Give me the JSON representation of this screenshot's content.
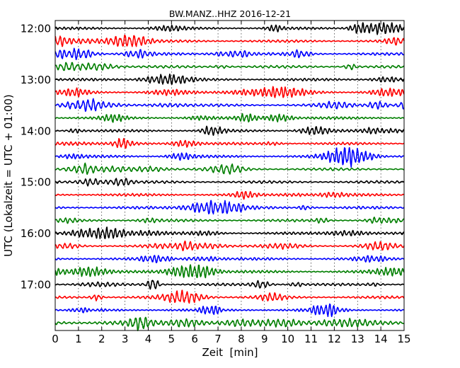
{
  "chart_data": {
    "type": "line",
    "title": "BW.MANZ..HHZ 2016-12-21",
    "xlabel": "Zeit  [min]",
    "ylabel": "UTC (Lokalzeit = UTC + 01:00)",
    "xlim": [
      0,
      15
    ],
    "x_ticks": [
      "0",
      "1",
      "2",
      "3",
      "4",
      "5",
      "6",
      "7",
      "8",
      "9",
      "10",
      "11",
      "12",
      "13",
      "14",
      "15"
    ],
    "y_ticks": [
      {
        "label": "12:00",
        "row": 0
      },
      {
        "label": "13:00",
        "row": 4
      },
      {
        "label": "14:00",
        "row": 8
      },
      {
        "label": "15:00",
        "row": 12
      },
      {
        "label": "16:00",
        "row": 16
      },
      {
        "label": "17:00",
        "row": 20
      }
    ],
    "grid": true,
    "trace_count": 24,
    "trace_minutes": 15,
    "trace_colors": [
      "#000000",
      "#ff0000",
      "#0000ff",
      "#007f00"
    ],
    "start_time": "12:00"
  }
}
